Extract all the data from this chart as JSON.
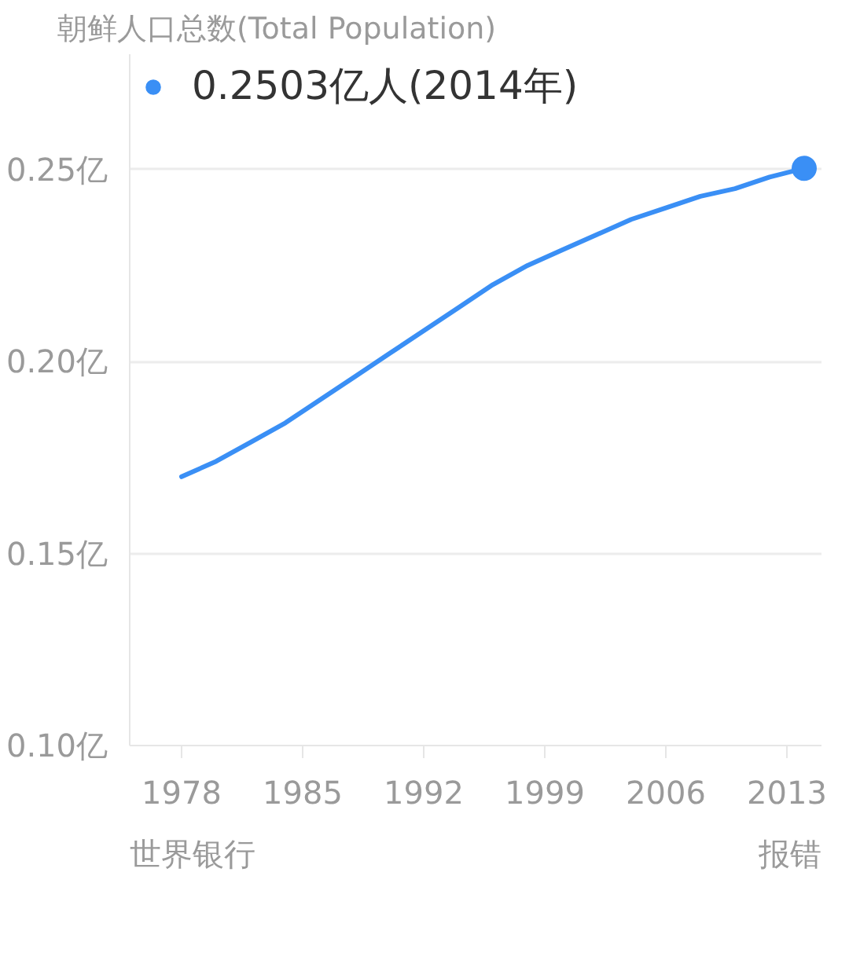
{
  "chart_data": {
    "type": "line",
    "title": "朝鲜人口总数(Total Population)",
    "x": [
      1978,
      1980,
      1982,
      1984,
      1986,
      1988,
      1990,
      1992,
      1994,
      1996,
      1998,
      2000,
      2002,
      2004,
      2006,
      2008,
      2010,
      2012,
      2014
    ],
    "series": [
      {
        "color": "#3a8ff5",
        "values": [
          0.17,
          0.174,
          0.179,
          0.184,
          0.19,
          0.196,
          0.202,
          0.208,
          0.214,
          0.22,
          0.225,
          0.229,
          0.233,
          0.237,
          0.24,
          0.243,
          0.245,
          0.248,
          0.2503
        ]
      },
      {
        "type": "scatter",
        "name": "0.2503亿人(2014年)",
        "color": "#3a8ff5",
        "marker": "circle",
        "x": [
          2014
        ],
        "values": [
          0.2503
        ]
      }
    ],
    "xlim": [
      1975,
      2015
    ],
    "xticks": [
      1978,
      1985,
      1992,
      1999,
      2006,
      2013
    ],
    "ylim": [
      0.1,
      0.28
    ],
    "yticks": [
      {
        "value": 0.1,
        "label": "0.10亿"
      },
      {
        "value": 0.15,
        "label": "0.15亿"
      },
      {
        "value": 0.2,
        "label": "0.20亿"
      },
      {
        "value": 0.25,
        "label": "0.25亿"
      }
    ],
    "grid": "y",
    "legend": "top left",
    "annotations": [
      "世界银行",
      "报错"
    ]
  }
}
